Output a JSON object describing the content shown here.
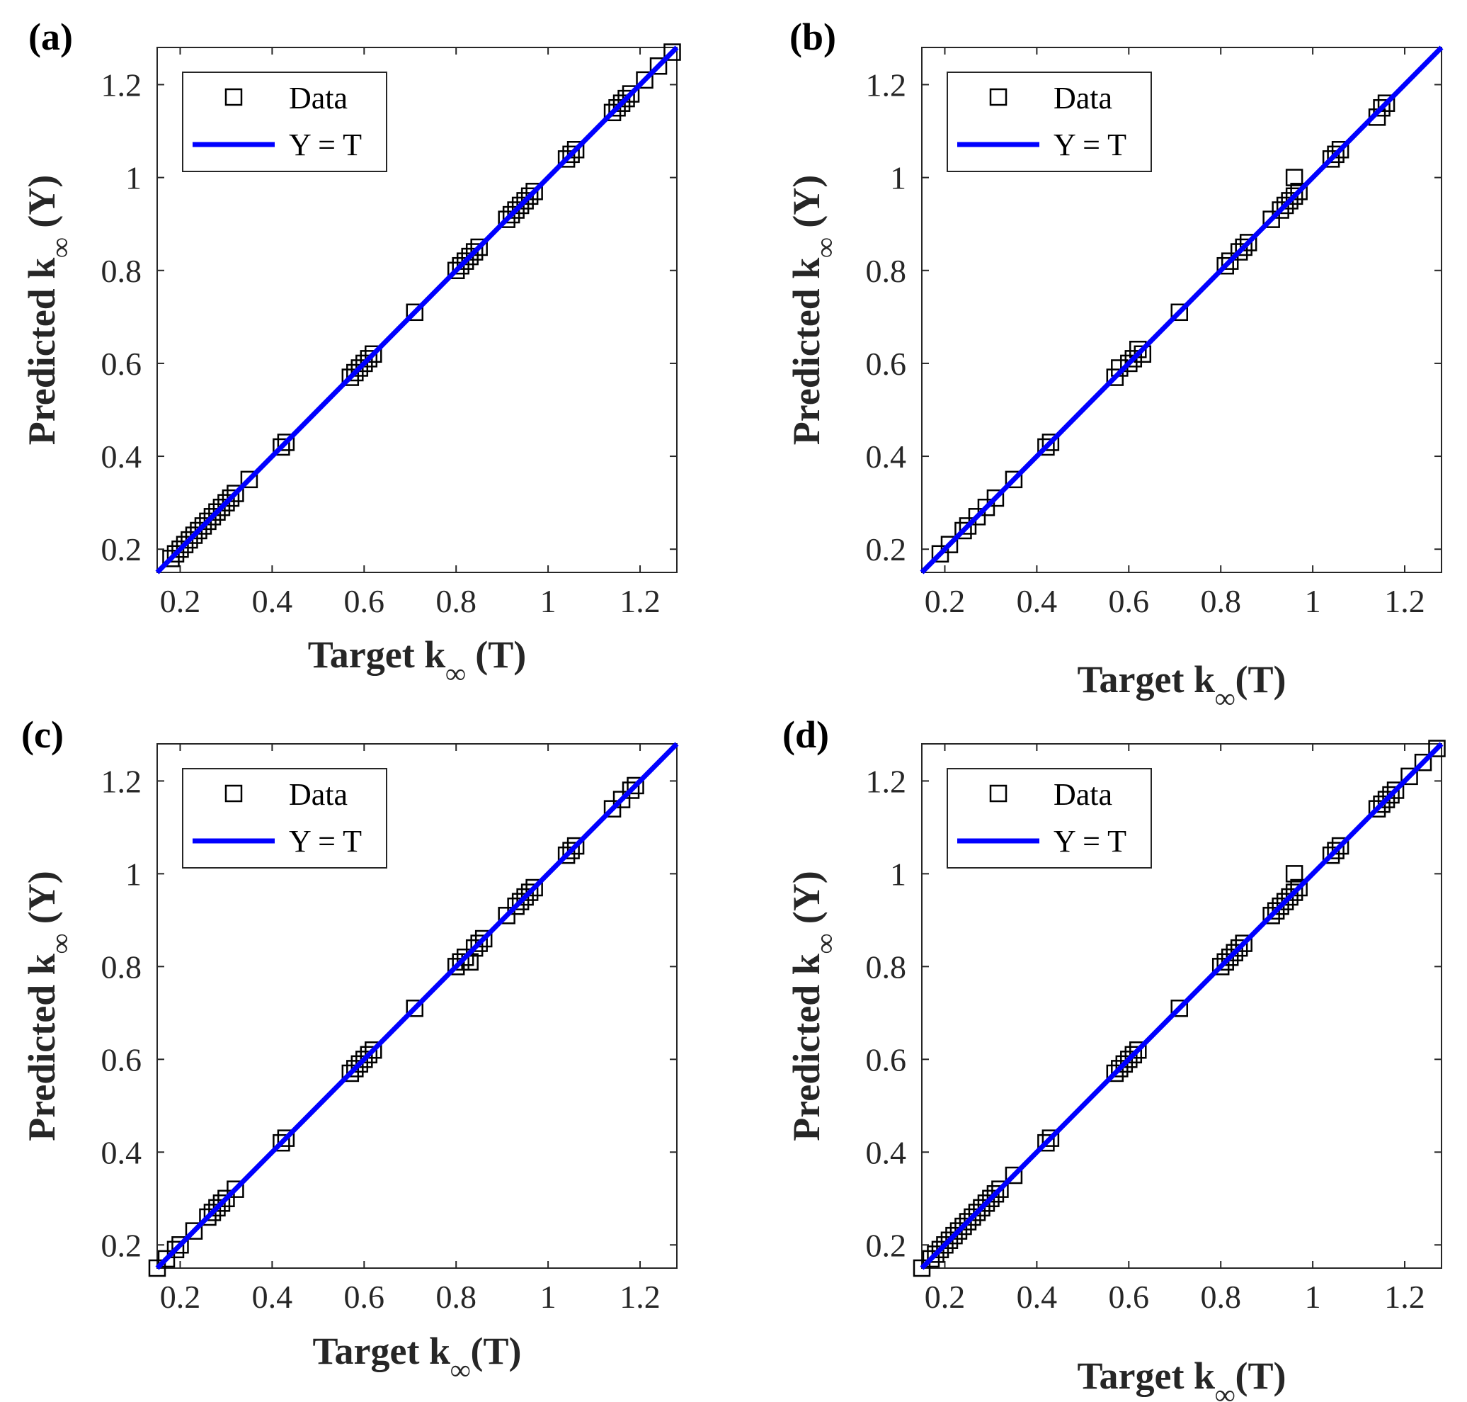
{
  "colors": {
    "fit_line": "#0000ff",
    "marker": "#000000",
    "axis": "#262626"
  },
  "chart_data": [
    {
      "panel_label": "(a)",
      "type": "scatter",
      "xlabel_main": "Target k",
      "xlabel_sub": "∞",
      "xlabel_tail": " (T)",
      "ylabel_main": "Predicted k",
      "ylabel_sub": "∞",
      "ylabel_tail": " (Y)",
      "xlim": [
        0.15,
        1.28
      ],
      "ylim": [
        0.15,
        1.28
      ],
      "xticks": [
        0.2,
        0.4,
        0.6,
        0.8,
        1,
        1.2
      ],
      "yticks": [
        0.2,
        0.4,
        0.6,
        0.8,
        1,
        1.2
      ],
      "legend": [
        "Data",
        "Y = T"
      ],
      "legend_position": "top-left",
      "series": [
        {
          "name": "Data",
          "marker": "square",
          "points": [
            [
              0.18,
              0.18
            ],
            [
              0.19,
              0.19
            ],
            [
              0.2,
              0.2
            ],
            [
              0.21,
              0.21
            ],
            [
              0.22,
              0.22
            ],
            [
              0.23,
              0.23
            ],
            [
              0.24,
              0.24
            ],
            [
              0.25,
              0.25
            ],
            [
              0.26,
              0.26
            ],
            [
              0.27,
              0.27
            ],
            [
              0.28,
              0.28
            ],
            [
              0.29,
              0.29
            ],
            [
              0.3,
              0.3
            ],
            [
              0.31,
              0.31
            ],
            [
              0.32,
              0.32
            ],
            [
              0.35,
              0.35
            ],
            [
              0.42,
              0.42
            ],
            [
              0.43,
              0.43
            ],
            [
              0.57,
              0.57
            ],
            [
              0.58,
              0.58
            ],
            [
              0.59,
              0.59
            ],
            [
              0.6,
              0.6
            ],
            [
              0.61,
              0.61
            ],
            [
              0.62,
              0.62
            ],
            [
              0.71,
              0.71
            ],
            [
              0.8,
              0.8
            ],
            [
              0.81,
              0.81
            ],
            [
              0.82,
              0.82
            ],
            [
              0.83,
              0.83
            ],
            [
              0.84,
              0.84
            ],
            [
              0.85,
              0.85
            ],
            [
              0.91,
              0.91
            ],
            [
              0.92,
              0.92
            ],
            [
              0.93,
              0.93
            ],
            [
              0.94,
              0.94
            ],
            [
              0.95,
              0.95
            ],
            [
              0.96,
              0.96
            ],
            [
              0.97,
              0.97
            ],
            [
              1.04,
              1.04
            ],
            [
              1.05,
              1.05
            ],
            [
              1.06,
              1.06
            ],
            [
              1.14,
              1.14
            ],
            [
              1.15,
              1.15
            ],
            [
              1.16,
              1.16
            ],
            [
              1.17,
              1.17
            ],
            [
              1.18,
              1.18
            ],
            [
              1.21,
              1.21
            ],
            [
              1.24,
              1.24
            ],
            [
              1.27,
              1.27
            ]
          ]
        },
        {
          "name": "Y = T",
          "line": [
            [
              0.15,
              0.15
            ],
            [
              1.28,
              1.28
            ]
          ]
        }
      ]
    },
    {
      "panel_label": "(b)",
      "type": "scatter",
      "xlabel_main": "Target k",
      "xlabel_sub": "∞",
      "xlabel_tail": "(T)",
      "ylabel_main": "Predicted k",
      "ylabel_sub": "∞",
      "ylabel_tail": " (Y)",
      "xlim": [
        0.15,
        1.28
      ],
      "ylim": [
        0.15,
        1.28
      ],
      "xticks": [
        0.2,
        0.4,
        0.6,
        0.8,
        1,
        1.2
      ],
      "yticks": [
        0.2,
        0.4,
        0.6,
        0.8,
        1,
        1.2
      ],
      "legend": [
        "Data",
        "Y = T"
      ],
      "legend_position": "top-left",
      "series": [
        {
          "name": "Data",
          "marker": "square",
          "points": [
            [
              0.19,
              0.19
            ],
            [
              0.21,
              0.21
            ],
            [
              0.24,
              0.24
            ],
            [
              0.25,
              0.25
            ],
            [
              0.27,
              0.27
            ],
            [
              0.29,
              0.29
            ],
            [
              0.31,
              0.31
            ],
            [
              0.35,
              0.35
            ],
            [
              0.42,
              0.42
            ],
            [
              0.43,
              0.43
            ],
            [
              0.57,
              0.57
            ],
            [
              0.58,
              0.59
            ],
            [
              0.6,
              0.6
            ],
            [
              0.61,
              0.61
            ],
            [
              0.62,
              0.63
            ],
            [
              0.63,
              0.62
            ],
            [
              0.71,
              0.71
            ],
            [
              0.81,
              0.81
            ],
            [
              0.82,
              0.82
            ],
            [
              0.84,
              0.84
            ],
            [
              0.85,
              0.85
            ],
            [
              0.86,
              0.86
            ],
            [
              0.91,
              0.91
            ],
            [
              0.93,
              0.93
            ],
            [
              0.94,
              0.94
            ],
            [
              0.95,
              0.95
            ],
            [
              0.96,
              0.96
            ],
            [
              0.97,
              0.97
            ],
            [
              0.96,
              1.0
            ],
            [
              1.04,
              1.04
            ],
            [
              1.05,
              1.05
            ],
            [
              1.06,
              1.06
            ],
            [
              1.14,
              1.13
            ],
            [
              1.15,
              1.15
            ],
            [
              1.16,
              1.16
            ]
          ]
        },
        {
          "name": "Y = T",
          "line": [
            [
              0.15,
              0.15
            ],
            [
              1.28,
              1.28
            ]
          ]
        }
      ]
    },
    {
      "panel_label": "(c)",
      "type": "scatter",
      "xlabel_main": "Target k",
      "xlabel_sub": "∞",
      "xlabel_tail": "(T)",
      "ylabel_main": "Predicted k",
      "ylabel_sub": "∞",
      "ylabel_tail": " (Y)",
      "xlim": [
        0.15,
        1.28
      ],
      "ylim": [
        0.15,
        1.28
      ],
      "xticks": [
        0.2,
        0.4,
        0.6,
        0.8,
        1,
        1.2
      ],
      "yticks": [
        0.2,
        0.4,
        0.6,
        0.8,
        1,
        1.2
      ],
      "legend": [
        "Data",
        "Y = T"
      ],
      "legend_position": "top-left",
      "series": [
        {
          "name": "Data",
          "marker": "square",
          "points": [
            [
              0.15,
              0.15
            ],
            [
              0.17,
              0.17
            ],
            [
              0.19,
              0.19
            ],
            [
              0.2,
              0.2
            ],
            [
              0.23,
              0.23
            ],
            [
              0.26,
              0.26
            ],
            [
              0.27,
              0.27
            ],
            [
              0.28,
              0.28
            ],
            [
              0.29,
              0.29
            ],
            [
              0.3,
              0.3
            ],
            [
              0.32,
              0.32
            ],
            [
              0.42,
              0.42
            ],
            [
              0.43,
              0.43
            ],
            [
              0.57,
              0.57
            ],
            [
              0.58,
              0.58
            ],
            [
              0.59,
              0.59
            ],
            [
              0.6,
              0.6
            ],
            [
              0.61,
              0.61
            ],
            [
              0.62,
              0.62
            ],
            [
              0.71,
              0.71
            ],
            [
              0.8,
              0.8
            ],
            [
              0.81,
              0.81
            ],
            [
              0.82,
              0.82
            ],
            [
              0.83,
              0.81
            ],
            [
              0.84,
              0.84
            ],
            [
              0.85,
              0.85
            ],
            [
              0.86,
              0.86
            ],
            [
              0.91,
              0.91
            ],
            [
              0.93,
              0.93
            ],
            [
              0.94,
              0.94
            ],
            [
              0.95,
              0.95
            ],
            [
              0.96,
              0.96
            ],
            [
              0.97,
              0.97
            ],
            [
              1.04,
              1.04
            ],
            [
              1.05,
              1.05
            ],
            [
              1.06,
              1.06
            ],
            [
              1.14,
              1.14
            ],
            [
              1.16,
              1.16
            ],
            [
              1.18,
              1.18
            ],
            [
              1.19,
              1.19
            ]
          ]
        },
        {
          "name": "Y = T",
          "line": [
            [
              0.15,
              0.15
            ],
            [
              1.28,
              1.28
            ]
          ]
        }
      ]
    },
    {
      "panel_label": "(d)",
      "type": "scatter",
      "xlabel_main": "Target k",
      "xlabel_sub": "∞",
      "xlabel_tail": "(T)",
      "ylabel_main": "Predicted k",
      "ylabel_sub": "∞",
      "ylabel_tail": " (Y)",
      "xlim": [
        0.15,
        1.28
      ],
      "ylim": [
        0.15,
        1.28
      ],
      "xticks": [
        0.2,
        0.4,
        0.6,
        0.8,
        1,
        1.2
      ],
      "yticks": [
        0.2,
        0.4,
        0.6,
        0.8,
        1,
        1.2
      ],
      "legend": [
        "Data",
        "Y = T"
      ],
      "legend_position": "top-left",
      "series": [
        {
          "name": "Data",
          "marker": "square",
          "points": [
            [
              0.15,
              0.15
            ],
            [
              0.17,
              0.17
            ],
            [
              0.18,
              0.18
            ],
            [
              0.19,
              0.19
            ],
            [
              0.2,
              0.2
            ],
            [
              0.21,
              0.21
            ],
            [
              0.22,
              0.22
            ],
            [
              0.23,
              0.23
            ],
            [
              0.24,
              0.24
            ],
            [
              0.25,
              0.25
            ],
            [
              0.26,
              0.26
            ],
            [
              0.27,
              0.27
            ],
            [
              0.28,
              0.28
            ],
            [
              0.29,
              0.29
            ],
            [
              0.3,
              0.3
            ],
            [
              0.31,
              0.31
            ],
            [
              0.32,
              0.32
            ],
            [
              0.35,
              0.35
            ],
            [
              0.42,
              0.42
            ],
            [
              0.43,
              0.43
            ],
            [
              0.57,
              0.57
            ],
            [
              0.58,
              0.58
            ],
            [
              0.59,
              0.59
            ],
            [
              0.6,
              0.6
            ],
            [
              0.61,
              0.61
            ],
            [
              0.62,
              0.62
            ],
            [
              0.71,
              0.71
            ],
            [
              0.8,
              0.8
            ],
            [
              0.81,
              0.81
            ],
            [
              0.82,
              0.82
            ],
            [
              0.83,
              0.83
            ],
            [
              0.84,
              0.84
            ],
            [
              0.85,
              0.85
            ],
            [
              0.91,
              0.91
            ],
            [
              0.92,
              0.92
            ],
            [
              0.93,
              0.93
            ],
            [
              0.94,
              0.94
            ],
            [
              0.95,
              0.95
            ],
            [
              0.96,
              0.96
            ],
            [
              0.97,
              0.97
            ],
            [
              0.96,
              1.0
            ],
            [
              1.04,
              1.04
            ],
            [
              1.05,
              1.05
            ],
            [
              1.06,
              1.06
            ],
            [
              1.14,
              1.14
            ],
            [
              1.15,
              1.15
            ],
            [
              1.16,
              1.16
            ],
            [
              1.17,
              1.17
            ],
            [
              1.18,
              1.18
            ],
            [
              1.21,
              1.21
            ],
            [
              1.24,
              1.24
            ],
            [
              1.27,
              1.27
            ]
          ]
        },
        {
          "name": "Y = T",
          "line": [
            [
              0.15,
              0.15
            ],
            [
              1.28,
              1.28
            ]
          ]
        }
      ]
    }
  ]
}
